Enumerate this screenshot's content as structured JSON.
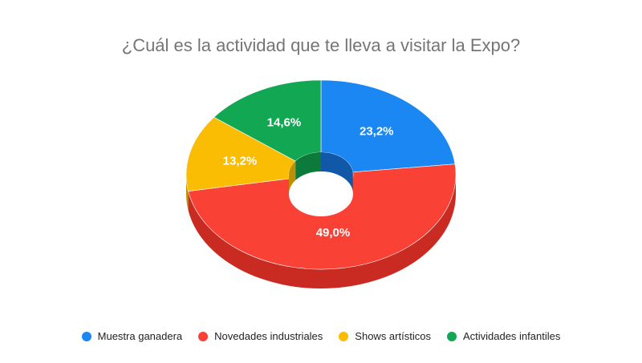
{
  "chart_data": {
    "type": "pie",
    "subtype": "3d-donut",
    "title": "¿Cuál es la actividad que te lleva a visitar la Expo?",
    "categories": [
      "Muestra ganadera",
      "Novedades industriales",
      "Shows artísticos",
      "Actividades infantiles"
    ],
    "values": [
      23.2,
      49.0,
      13.2,
      14.6
    ],
    "data_labels": [
      "23,2%",
      "49,0%",
      "13,2%",
      "14,6%"
    ],
    "colors": [
      "#1a87f2",
      "#fa4135",
      "#fbbd03",
      "#12a853"
    ],
    "side_colors": [
      "#1159a8",
      "#c92b22",
      "#c08f00",
      "#0b7a3b"
    ],
    "legend_position": "bottom"
  }
}
